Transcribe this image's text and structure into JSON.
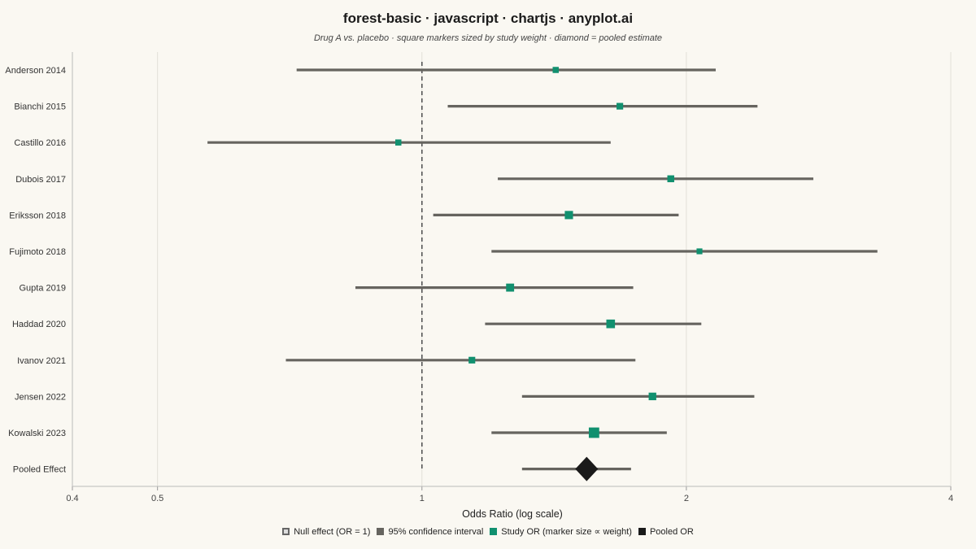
{
  "title": "forest-basic · javascript · chartjs · anyplot.ai",
  "subtitle": "Drug A vs. placebo · square markers sized by study weight · diamond = pooled estimate",
  "chart_data": {
    "type": "scatter",
    "scale": "log",
    "xlabel": "Odds Ratio (log scale)",
    "xlim": [
      0.4,
      4
    ],
    "x_ticks": [
      "0.4",
      "0.5",
      "1",
      "2",
      "4"
    ],
    "null_value": 1,
    "colors": {
      "study": "#11906f",
      "ci": "#66645f",
      "pooled": "#1a1a1a",
      "null_line": "#555555"
    },
    "studies": [
      {
        "label": "Anderson 2014",
        "or": 1.42,
        "ci_low": 0.72,
        "ci_high": 2.16,
        "weight": 5.5
      },
      {
        "label": "Bianchi 2015",
        "or": 1.68,
        "ci_low": 1.07,
        "ci_high": 2.41,
        "weight": 6.5
      },
      {
        "label": "Castillo 2016",
        "or": 0.94,
        "ci_low": 0.57,
        "ci_high": 1.64,
        "weight": 5.5
      },
      {
        "label": "Dubois 2017",
        "or": 1.92,
        "ci_low": 1.22,
        "ci_high": 2.79,
        "weight": 7.0
      },
      {
        "label": "Eriksson 2018",
        "or": 1.47,
        "ci_low": 1.03,
        "ci_high": 1.96,
        "weight": 10.0
      },
      {
        "label": "Fujimoto 2018",
        "or": 2.07,
        "ci_low": 1.2,
        "ci_high": 3.3,
        "weight": 5.0
      },
      {
        "label": "Gupta 2019",
        "or": 1.26,
        "ci_low": 0.84,
        "ci_high": 1.74,
        "weight": 9.5
      },
      {
        "label": "Haddad 2020",
        "or": 1.64,
        "ci_low": 1.18,
        "ci_high": 2.08,
        "weight": 11.0
      },
      {
        "label": "Ivanov 2021",
        "or": 1.14,
        "ci_low": 0.7,
        "ci_high": 1.75,
        "weight": 6.5
      },
      {
        "label": "Jensen 2022",
        "or": 1.83,
        "ci_low": 1.3,
        "ci_high": 2.39,
        "weight": 8.5
      },
      {
        "label": "Kowalski 2023",
        "or": 1.57,
        "ci_low": 1.2,
        "ci_high": 1.9,
        "weight": 16.0
      }
    ],
    "pooled": {
      "label": "Pooled Effect",
      "or": 1.54,
      "ci_low": 1.3,
      "ci_high": 1.73
    },
    "legend": {
      "null": "Null effect (OR = 1)",
      "ci": "95% confidence interval",
      "study": "Study OR (marker size ∝ weight)",
      "pooled": "Pooled OR"
    }
  }
}
